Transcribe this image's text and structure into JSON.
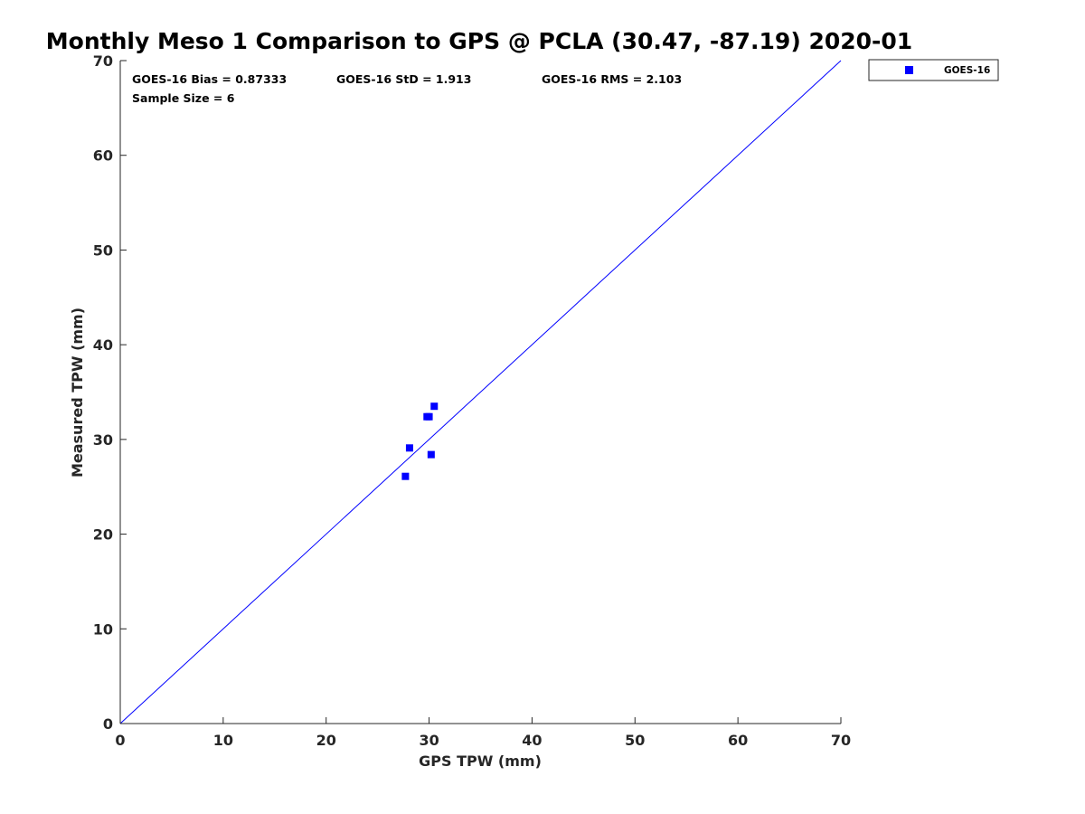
{
  "chart_data": {
    "type": "scatter",
    "title": "Monthly Meso 1 Comparison to GPS @ PCLA (30.47, -87.19) 2020-01",
    "xlabel": "GPS TPW (mm)",
    "ylabel": "Measured TPW (mm)",
    "xlim": [
      0,
      70
    ],
    "ylim": [
      0,
      70
    ],
    "xticks": [
      0,
      10,
      20,
      30,
      40,
      50,
      60,
      70
    ],
    "yticks": [
      0,
      10,
      20,
      30,
      40,
      50,
      60,
      70
    ],
    "grid": false,
    "legend_position": "outside-top-right",
    "reference_line": {
      "x": [
        0,
        70
      ],
      "y": [
        0,
        70
      ],
      "color": "#0000ff"
    },
    "series": [
      {
        "name": "GOES-16",
        "color": "#0000ff",
        "marker": "square",
        "points": [
          {
            "x": 27.7,
            "y": 26.1
          },
          {
            "x": 28.1,
            "y": 29.1
          },
          {
            "x": 29.8,
            "y": 32.4
          },
          {
            "x": 30.0,
            "y": 32.4
          },
          {
            "x": 30.2,
            "y": 28.4
          },
          {
            "x": 30.5,
            "y": 33.5
          }
        ]
      }
    ],
    "annotations": {
      "bias": "GOES-16 Bias = 0.87333",
      "std": "GOES-16 StD = 1.913",
      "rms": "GOES-16 RMS = 2.103",
      "sample": "Sample Size = 6"
    }
  }
}
